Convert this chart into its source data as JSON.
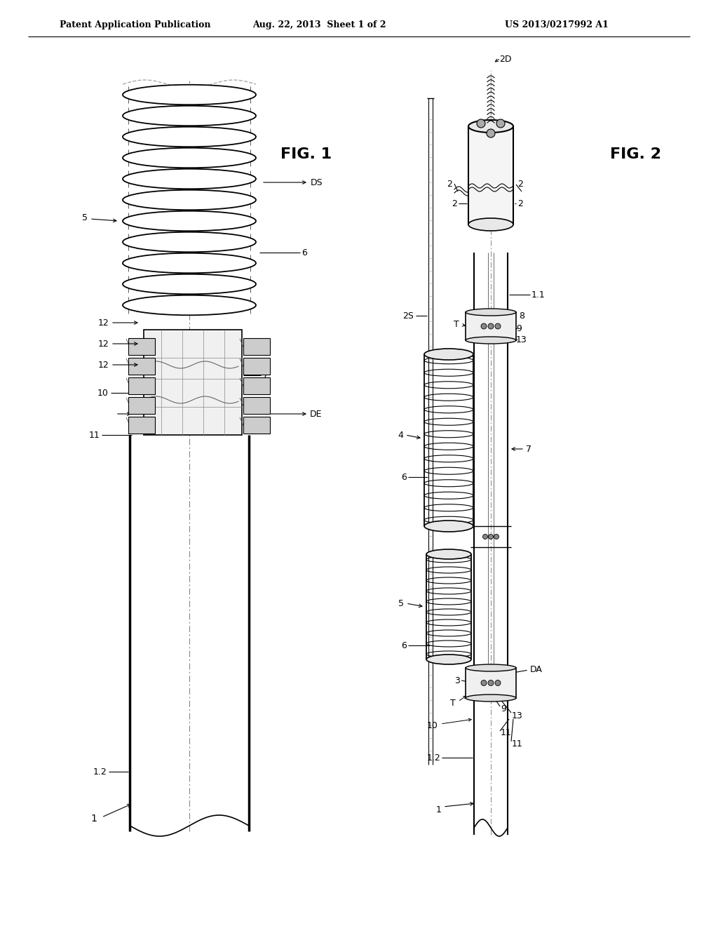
{
  "bg_color": "#ffffff",
  "header_text": "Patent Application Publication",
  "header_date": "Aug. 22, 2013  Sheet 1 of 2",
  "header_patent": "US 2013/0217992 A1",
  "fig1_label": "FIG. 1",
  "fig2_label": "FIG. 2"
}
